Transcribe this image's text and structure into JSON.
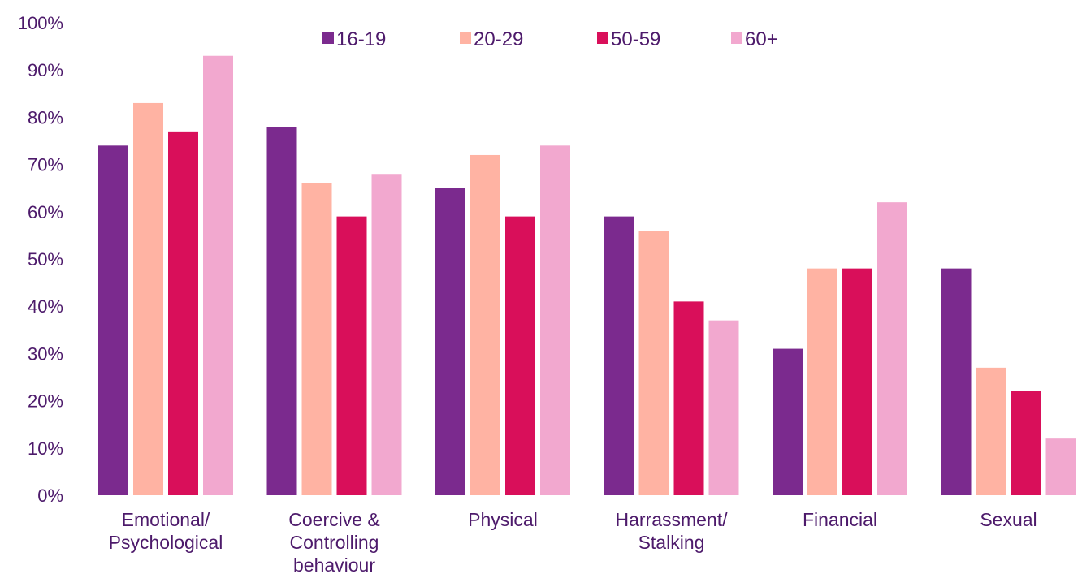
{
  "chart_data": {
    "type": "bar",
    "title": "",
    "xlabel": "",
    "ylabel": "",
    "ylim": [
      0,
      100
    ],
    "y_tick_labels": [
      "0%",
      "10%",
      "20%",
      "30%",
      "40%",
      "50%",
      "60%",
      "70%",
      "80%",
      "90%",
      "100%"
    ],
    "grid": false,
    "legend_position": "top",
    "categories": [
      [
        "Emotional/",
        "Psychological"
      ],
      [
        "Coercive &",
        "Controlling",
        "behaviour"
      ],
      [
        "Physical"
      ],
      [
        "Harrassment/",
        "Stalking"
      ],
      [
        "Financial"
      ],
      [
        "Sexual"
      ]
    ],
    "series": [
      {
        "name": "16-19",
        "color": "#7b2a8e",
        "values": [
          74,
          78,
          65,
          59,
          31,
          48
        ]
      },
      {
        "name": "20-29",
        "color": "#ffb3a3",
        "values": [
          83,
          66,
          72,
          56,
          48,
          27
        ]
      },
      {
        "name": "50-59",
        "color": "#d90f5a",
        "values": [
          77,
          59,
          59,
          41,
          48,
          22
        ]
      },
      {
        "name": "60+",
        "color": "#f2a8cf",
        "values": [
          93,
          68,
          74,
          37,
          62,
          12
        ]
      }
    ]
  }
}
